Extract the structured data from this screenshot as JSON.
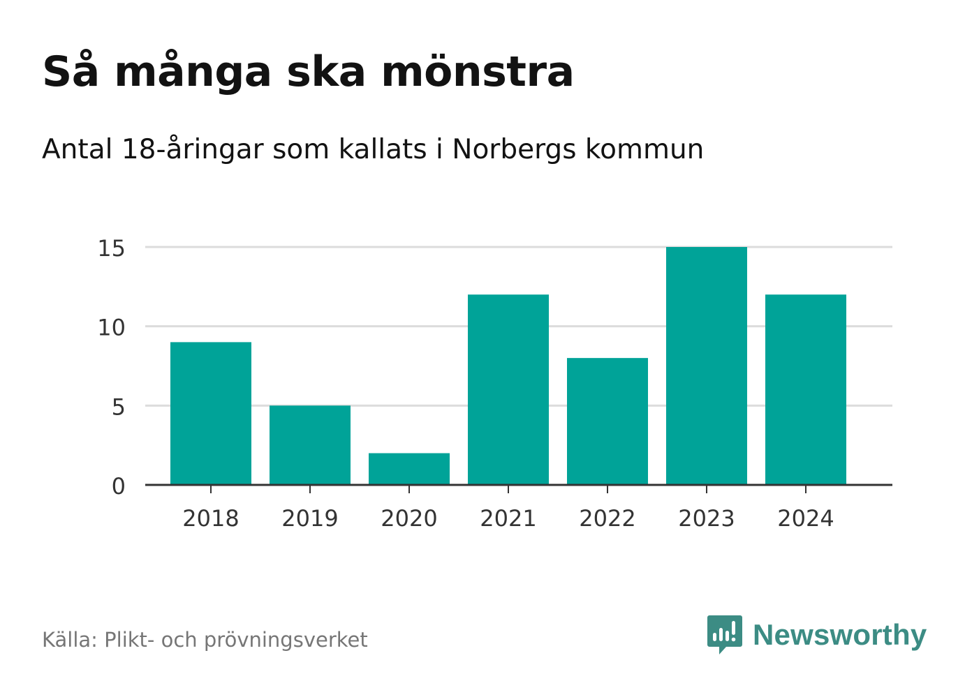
{
  "title": "Så många ska mönstra",
  "subtitle": "Antal 18-åringar som kallats i Norbergs kommun",
  "source": "Källa: Plikt- och prövningsverket",
  "brand": {
    "name": "Newsworthy",
    "icon": "newsworthy-logo-icon",
    "color": "#3c8c84"
  },
  "colors": {
    "bar": "#00a398",
    "grid": "#dcdcdc",
    "axis": "#333333",
    "text": "#121212",
    "muted": "#767676"
  },
  "chart_data": {
    "type": "bar",
    "title": "Så många ska mönstra",
    "subtitle": "Antal 18-åringar som kallats i Norbergs kommun",
    "xlabel": "",
    "ylabel": "",
    "categories": [
      "2018",
      "2019",
      "2020",
      "2021",
      "2022",
      "2023",
      "2024"
    ],
    "values": [
      9,
      5,
      2,
      12,
      8,
      15,
      12
    ],
    "ylim": [
      0,
      15
    ],
    "yticks": [
      0,
      5,
      10,
      15
    ],
    "grid": true,
    "legend": "none"
  }
}
